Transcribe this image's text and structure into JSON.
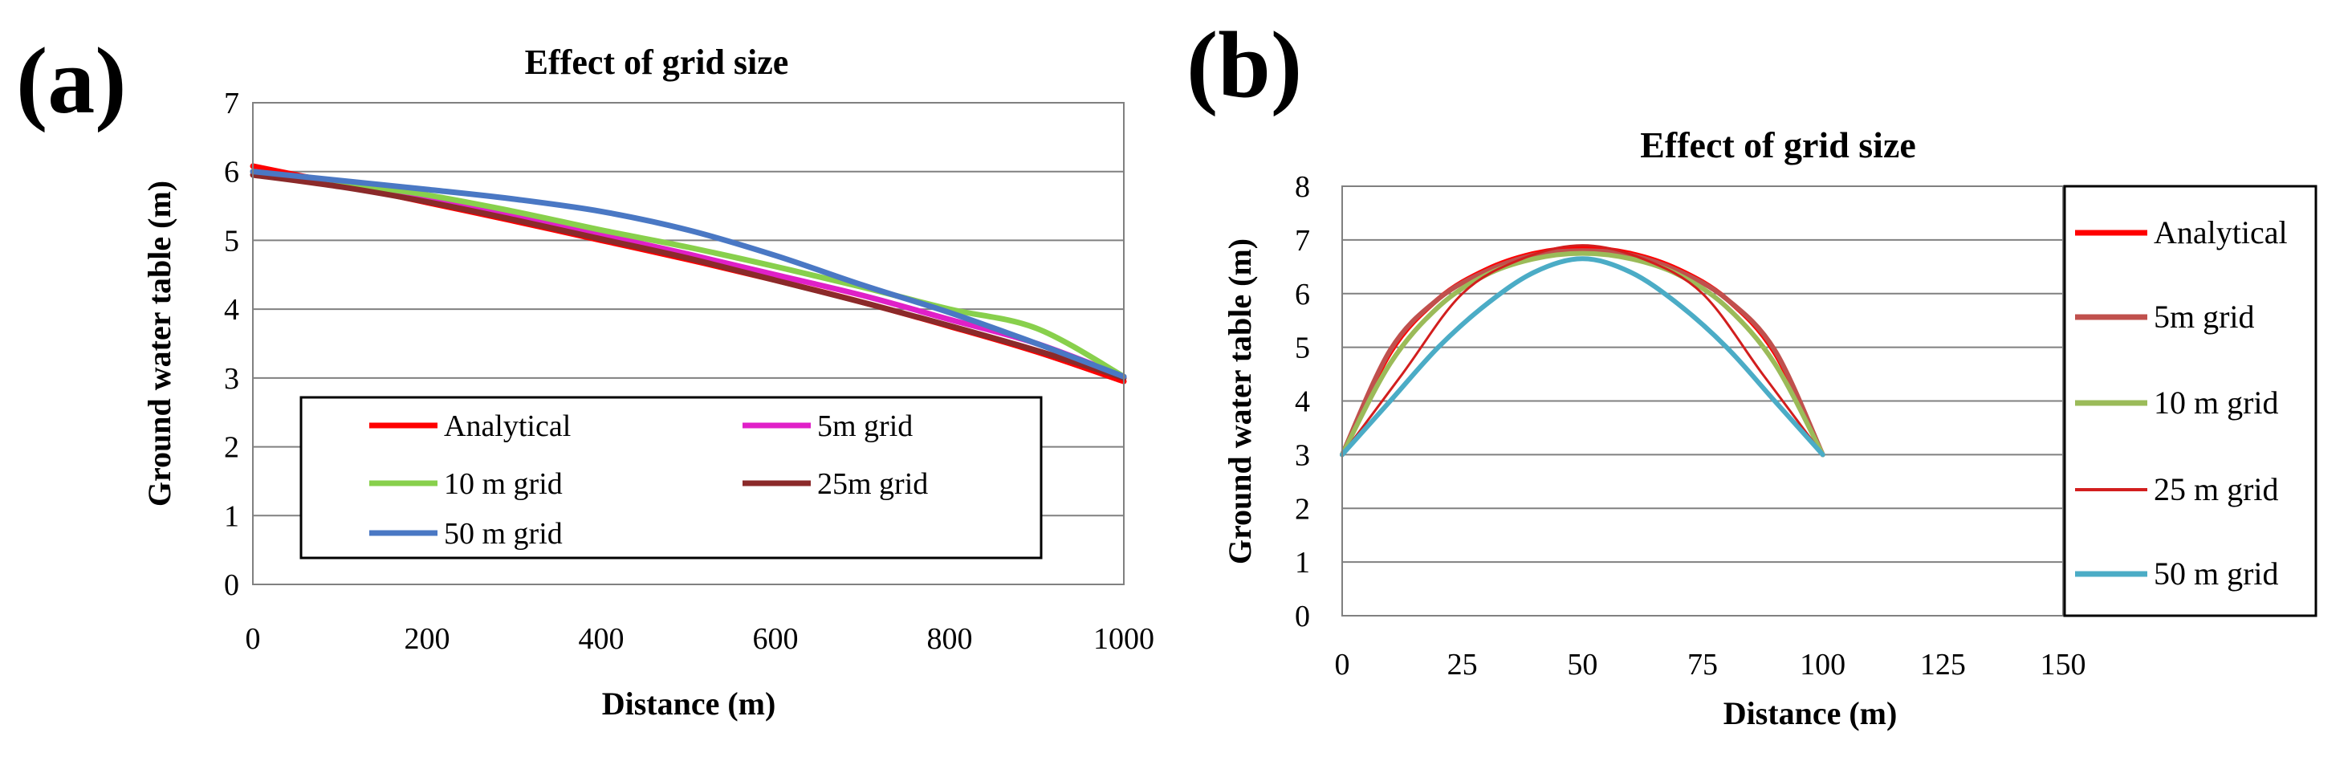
{
  "chart_data": [
    {
      "panel": "(a)",
      "type": "line",
      "title": "Effect of grid size",
      "xlabel": "Distance (m)",
      "ylabel": "Ground water table  (m)",
      "xlim": [
        0,
        1000
      ],
      "ylim": [
        0,
        7
      ],
      "xticks": [
        0,
        200,
        400,
        600,
        800,
        1000
      ],
      "yticks": [
        0,
        1,
        2,
        3,
        4,
        5,
        6,
        7
      ],
      "grid": "horizontal",
      "legend": "lower-left inside",
      "series": [
        {
          "name": "Analytical",
          "color": "#ff0000",
          "x": [
            0,
            100,
            200,
            300,
            400,
            500,
            600,
            700,
            800,
            900,
            1000
          ],
          "y": [
            6.08,
            5.82,
            5.55,
            5.28,
            5.0,
            4.72,
            4.42,
            4.1,
            3.75,
            3.38,
            2.95
          ]
        },
        {
          "name": "5m grid",
          "color": "#e020c8",
          "x": [
            0,
            100,
            200,
            300,
            400,
            500,
            600,
            700,
            800,
            900,
            1000
          ],
          "y": [
            6.0,
            5.82,
            5.6,
            5.35,
            5.08,
            4.8,
            4.5,
            4.2,
            3.85,
            3.5,
            3.02
          ]
        },
        {
          "name": "10 m grid",
          "color": "#88d04c",
          "x": [
            0,
            100,
            200,
            300,
            400,
            500,
            600,
            700,
            800,
            900,
            1000
          ],
          "y": [
            6.0,
            5.84,
            5.66,
            5.42,
            5.15,
            4.9,
            4.62,
            4.32,
            4.0,
            3.72,
            3.02
          ]
        },
        {
          "name": "25m grid",
          "color": "#8b2a2a",
          "x": [
            0,
            100,
            200,
            300,
            400,
            500,
            600,
            700,
            800,
            900,
            1000
          ],
          "y": [
            5.95,
            5.78,
            5.56,
            5.3,
            5.02,
            4.74,
            4.42,
            4.1,
            3.76,
            3.4,
            3.0
          ]
        },
        {
          "name": "50 m grid",
          "color": "#4a78c4",
          "x": [
            0,
            100,
            200,
            300,
            400,
            500,
            600,
            700,
            800,
            900,
            1000
          ],
          "y": [
            6.0,
            5.87,
            5.74,
            5.6,
            5.42,
            5.15,
            4.78,
            4.35,
            3.95,
            3.5,
            3.02
          ]
        }
      ]
    },
    {
      "panel": "(b)",
      "type": "line",
      "title": "Effect of grid size",
      "xlabel": "Distance (m)",
      "ylabel": "Ground water table (m)",
      "xlim": [
        0,
        150
      ],
      "ylim": [
        0,
        8
      ],
      "xticks": [
        0,
        25,
        50,
        75,
        100,
        125,
        150
      ],
      "yticks": [
        0,
        1,
        2,
        3,
        4,
        5,
        6,
        7,
        8
      ],
      "grid": "horizontal",
      "legend": "right",
      "series": [
        {
          "name": "Analytical",
          "color": "#ff0000",
          "x": [
            0,
            10,
            20,
            30,
            40,
            50,
            60,
            70,
            80,
            90,
            100
          ],
          "y": [
            3.0,
            4.9,
            5.9,
            6.45,
            6.75,
            6.85,
            6.75,
            6.45,
            5.9,
            4.9,
            3.0
          ]
        },
        {
          "name": "5m grid",
          "color": "#c0504d",
          "x": [
            0,
            10,
            20,
            30,
            40,
            50,
            60,
            70,
            80,
            90,
            100
          ],
          "y": [
            3.0,
            4.95,
            5.9,
            6.42,
            6.72,
            6.8,
            6.72,
            6.42,
            5.9,
            4.95,
            3.0
          ]
        },
        {
          "name": "10 m grid",
          "color": "#9bbb59",
          "x": [
            0,
            10,
            20,
            30,
            40,
            50,
            60,
            70,
            80,
            90,
            100
          ],
          "y": [
            3.0,
            4.7,
            5.75,
            6.35,
            6.65,
            6.75,
            6.65,
            6.35,
            5.75,
            4.7,
            3.0
          ]
        },
        {
          "name": "25 m grid",
          "color": "#d21e1e",
          "x": [
            0,
            12.5,
            25,
            37.5,
            50,
            62.5,
            75,
            87.5,
            100
          ],
          "y": [
            3.0,
            4.5,
            6.0,
            6.65,
            6.9,
            6.65,
            6.0,
            4.5,
            3.0
          ]
        },
        {
          "name": "50 m grid",
          "color": "#4bacc6",
          "x": [
            0,
            10,
            20,
            30,
            40,
            50,
            60,
            70,
            80,
            90,
            100
          ],
          "y": [
            3.0,
            4.0,
            5.0,
            5.8,
            6.4,
            6.65,
            6.4,
            5.8,
            5.0,
            4.0,
            3.0
          ]
        }
      ]
    }
  ]
}
